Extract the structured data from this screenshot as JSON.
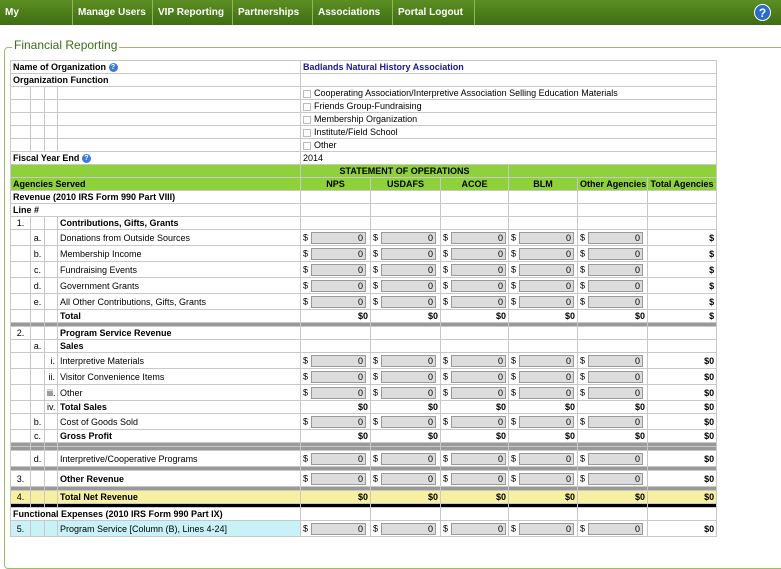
{
  "nav": [
    "My Dashboard",
    "Manage Users",
    "VIP Reporting",
    "Partnerships",
    "Associations",
    "Portal Logout"
  ],
  "help_icon": "?",
  "section_title": "Financial Reporting",
  "organization": {
    "name_label": "Name of Organization",
    "name_value": "Badlands Natural History Association",
    "function_label": "Organization Function",
    "function_options": [
      "Cooperating Association/Interpretive Association Selling Education Materials",
      "Friends Group-Fundraising",
      "Membership Organization",
      "Institute/Field School",
      "Other"
    ],
    "fiscal_year_label": "Fiscal Year End",
    "fiscal_year_value": "2014"
  },
  "statement_title": "STATEMENT OF OPERATIONS",
  "columns": [
    "Agencies Served",
    "NPS",
    "USDAFS",
    "ACOE",
    "BLM",
    "Other Agencies",
    "Total Agencies"
  ],
  "revenue_heading": "Revenue (2010 IRS Form 990 Part VIII)",
  "line_label": "Line #",
  "currency": "$",
  "rows": [
    {
      "num": "1.",
      "label": "Contributions, Gifts, Grants"
    },
    {
      "sub": "a.",
      "label": "Donations from Outside Sources",
      "inputs": [
        0,
        0,
        0,
        0,
        0
      ],
      "total": "$"
    },
    {
      "sub": "b.",
      "label": "Membership Income",
      "inputs": [
        0,
        0,
        0,
        0,
        0
      ],
      "total": "$"
    },
    {
      "sub": "c.",
      "label": "Fundraising Events",
      "inputs": [
        0,
        0,
        0,
        0,
        0
      ],
      "total": "$"
    },
    {
      "sub": "d.",
      "label": "Government Grants",
      "inputs": [
        0,
        0,
        0,
        0,
        0
      ],
      "total": "$"
    },
    {
      "sub": "e.",
      "label": "All Other Contributions, Gifts, Grants",
      "inputs": [
        0,
        0,
        0,
        0,
        0
      ],
      "total": "$"
    },
    {
      "label": "Total",
      "totals": [
        "$0",
        "$0",
        "$0",
        "$0",
        "$0"
      ],
      "total": "$"
    },
    {
      "num": "2.",
      "label": "Program Service Revenue"
    },
    {
      "sub": "a.",
      "label": "Sales"
    },
    {
      "roman": "i.",
      "label": "Interpretive Materials",
      "inputs": [
        0,
        0,
        0,
        0,
        0
      ],
      "total": "$0"
    },
    {
      "roman": "ii.",
      "label": "Visitor Convenience Items",
      "inputs": [
        0,
        0,
        0,
        0,
        0
      ],
      "total": "$0"
    },
    {
      "roman": "iii.",
      "label": "Other",
      "inputs": [
        0,
        0,
        0,
        0,
        0
      ],
      "total": "$0"
    },
    {
      "roman": "iv.",
      "label": "Total Sales",
      "totals": [
        "$0",
        "$0",
        "$0",
        "$0",
        "$0"
      ],
      "total": "$0"
    },
    {
      "sub": "b.",
      "label": "Cost of Goods Sold",
      "inputs": [
        0,
        0,
        0,
        0,
        0
      ],
      "total": "$0"
    },
    {
      "sub": "c.",
      "label": "Gross Profit",
      "totals": [
        "$0",
        "$0",
        "$0",
        "$0",
        "$0"
      ],
      "total": "$0"
    },
    {
      "sub": "d.",
      "label": "Interpretive/Cooperative Programs",
      "inputs": [
        0,
        0,
        0,
        0,
        0
      ],
      "total": "$0"
    },
    {
      "num": "3.",
      "label": "Other Revenue",
      "inputs": [
        0,
        0,
        0,
        0,
        0
      ],
      "total": "$0"
    },
    {
      "num": "4.",
      "label": "Total Net Revenue",
      "totals": [
        "$0",
        "$0",
        "$0",
        "$0",
        "$0"
      ],
      "total": "$0"
    },
    {
      "label": "Functional Expenses (2010 IRS Form 990 Part IX)"
    },
    {
      "num": "5.",
      "label": "Program Service [Column (B), Lines 4-24]",
      "inputs": [
        0,
        0,
        0,
        0,
        0
      ],
      "total": "$0"
    }
  ]
}
